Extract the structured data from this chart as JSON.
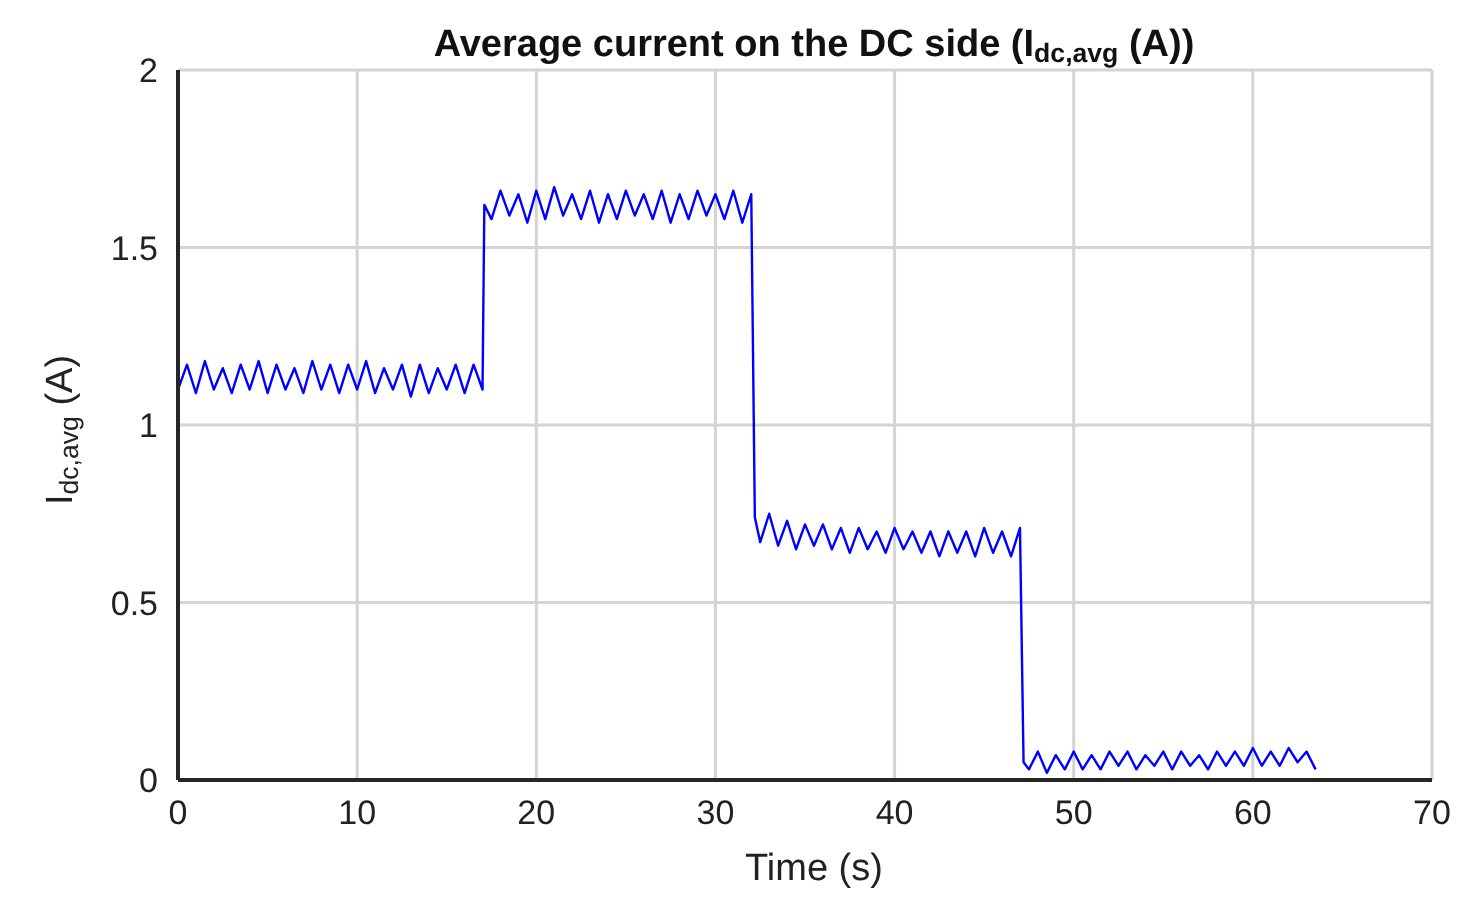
{
  "chart_data": {
    "type": "line",
    "title": "Average current on the DC side (I$_{dc,avg}$ (A))",
    "xlabel": "Time (s)",
    "ylabel": "I$_{dc,avg}$ (A)",
    "xlim": [
      0,
      70
    ],
    "xticks": [
      0,
      10,
      20,
      30,
      40,
      50,
      60,
      70
    ],
    "ylim": [
      0,
      2
    ],
    "yticks": [
      0,
      0.5,
      1,
      1.5,
      2
    ],
    "grid": true,
    "legend": false,
    "marker": "none",
    "line_style": "solid",
    "series": [
      {
        "color": "#0000ff",
        "x": [
          0,
          0.5,
          1,
          1.5,
          2,
          2.5,
          3,
          3.5,
          4,
          4.5,
          5,
          5.5,
          6,
          6.5,
          7,
          7.5,
          8,
          8.5,
          9,
          9.5,
          10,
          10.5,
          11,
          11.5,
          12,
          12.5,
          13,
          13.5,
          14,
          14.5,
          15,
          15.5,
          16,
          16.5,
          17,
          17.1,
          17.5,
          18,
          18.5,
          19,
          19.5,
          20,
          20.5,
          21,
          21.5,
          22,
          22.5,
          23,
          23.5,
          24,
          24.5,
          25,
          25.5,
          26,
          26.5,
          27,
          27.5,
          28,
          28.5,
          29,
          29.5,
          30,
          30.5,
          31,
          31.5,
          32,
          32.2,
          32.5,
          33,
          33.5,
          34,
          34.5,
          35,
          35.5,
          36,
          36.5,
          37,
          37.5,
          38,
          38.5,
          39,
          39.5,
          40,
          40.5,
          41,
          41.5,
          42,
          42.5,
          43,
          43.5,
          44,
          44.5,
          45,
          45.5,
          46,
          46.5,
          47,
          47.2,
          47.5,
          48,
          48.5,
          49,
          49.5,
          50,
          50.5,
          51,
          51.5,
          52,
          52.5,
          53,
          53.5,
          54,
          54.5,
          55,
          55.5,
          56,
          56.5,
          57,
          57.5,
          58,
          58.5,
          59,
          59.5,
          60,
          60.5,
          61,
          61.5,
          62,
          62.5,
          63,
          63.5
        ],
        "values": [
          1.1,
          1.17,
          1.09,
          1.18,
          1.1,
          1.16,
          1.09,
          1.17,
          1.1,
          1.18,
          1.09,
          1.17,
          1.1,
          1.16,
          1.09,
          1.18,
          1.1,
          1.17,
          1.09,
          1.17,
          1.1,
          1.18,
          1.09,
          1.16,
          1.1,
          1.17,
          1.08,
          1.17,
          1.09,
          1.16,
          1.1,
          1.17,
          1.09,
          1.17,
          1.1,
          1.62,
          1.58,
          1.66,
          1.59,
          1.65,
          1.57,
          1.66,
          1.58,
          1.67,
          1.59,
          1.65,
          1.58,
          1.66,
          1.57,
          1.65,
          1.58,
          1.66,
          1.59,
          1.65,
          1.58,
          1.66,
          1.57,
          1.65,
          1.58,
          1.66,
          1.59,
          1.65,
          1.58,
          1.66,
          1.57,
          1.65,
          0.74,
          0.67,
          0.75,
          0.66,
          0.73,
          0.65,
          0.72,
          0.66,
          0.72,
          0.65,
          0.71,
          0.64,
          0.71,
          0.65,
          0.7,
          0.64,
          0.71,
          0.65,
          0.7,
          0.64,
          0.7,
          0.63,
          0.7,
          0.64,
          0.7,
          0.63,
          0.71,
          0.64,
          0.7,
          0.63,
          0.71,
          0.05,
          0.03,
          0.08,
          0.02,
          0.07,
          0.03,
          0.08,
          0.03,
          0.07,
          0.03,
          0.08,
          0.04,
          0.08,
          0.03,
          0.07,
          0.04,
          0.08,
          0.03,
          0.08,
          0.04,
          0.07,
          0.03,
          0.08,
          0.04,
          0.08,
          0.04,
          0.09,
          0.04,
          0.08,
          0.04,
          0.09,
          0.05,
          0.08,
          0.03
        ]
      }
    ]
  }
}
